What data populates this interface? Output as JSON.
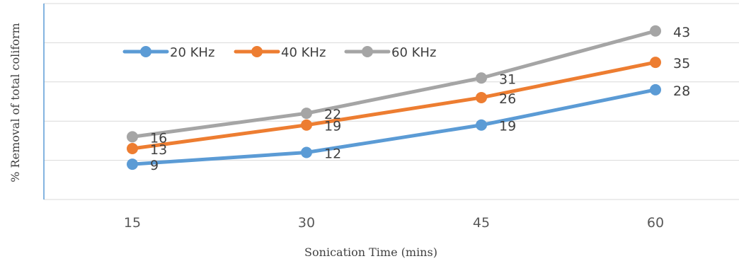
{
  "chart_data": {
    "type": "line",
    "title": "",
    "xlabel": "Sonication Time (mins)",
    "ylabel": "% Removal of total coliform",
    "x": [
      "15",
      "30",
      "45",
      "60"
    ],
    "ylim": [
      0,
      50
    ],
    "grid": true,
    "legend": "top-left",
    "series": [
      {
        "name": "20 KHz",
        "color": "#5b9bd5",
        "values": [
          9,
          12,
          19,
          28
        ],
        "labels": [
          "9",
          "12",
          "19",
          "28"
        ]
      },
      {
        "name": "40 KHz",
        "color": "#ed7d31",
        "values": [
          13,
          19,
          26,
          35
        ],
        "labels": [
          "13",
          "19",
          "26",
          "35"
        ]
      },
      {
        "name": "60 KHz",
        "color": "#a5a5a5",
        "values": [
          16,
          22,
          31,
          43
        ],
        "labels": [
          "16",
          "22",
          "31",
          "43"
        ]
      }
    ]
  }
}
